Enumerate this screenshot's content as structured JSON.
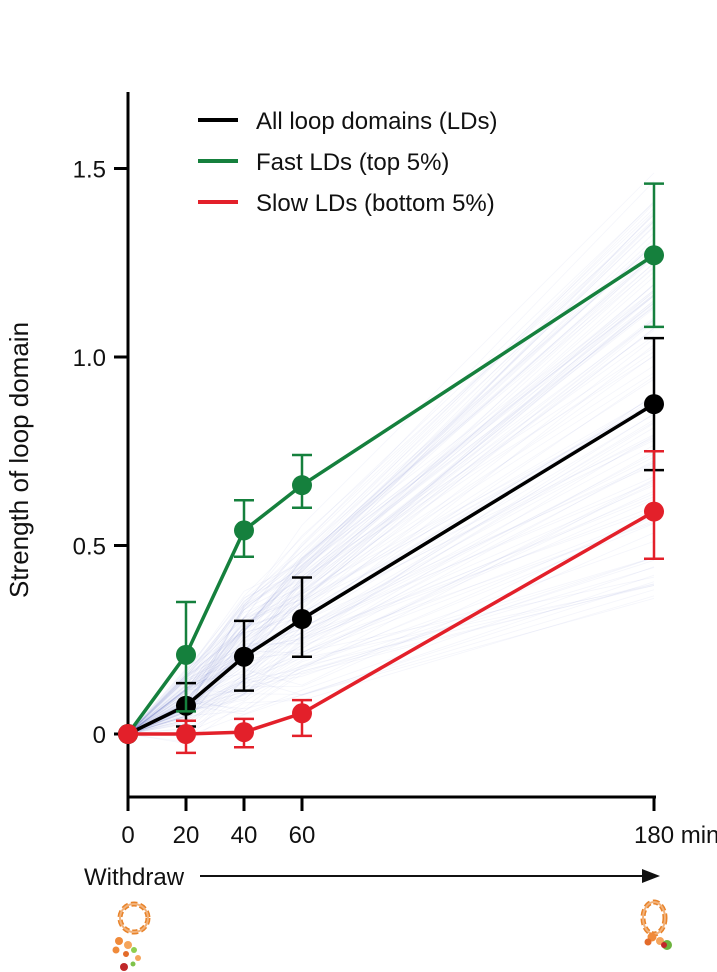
{
  "chart_data": {
    "type": "line",
    "title": "",
    "ylabel": "Strength of loop domain",
    "xlabel": "",
    "x": [
      0,
      20,
      40,
      60,
      180
    ],
    "x_tick_labels": [
      "0",
      "20",
      "40",
      "60",
      "180 min"
    ],
    "y_ticks": [
      0,
      0.5,
      1.0,
      1.5
    ],
    "y_tick_labels": [
      "0",
      "0.5",
      "1.0",
      "1.5"
    ],
    "ylim": [
      -0.17,
      1.7
    ],
    "legend_position": "top-left",
    "series": [
      {
        "name": "All loop domains (LDs)",
        "color": "#000000",
        "values": [
          0,
          0.075,
          0.205,
          0.305,
          0.875
        ],
        "err_low": [
          0,
          0.055,
          0.09,
          0.1,
          0.175
        ],
        "err_high": [
          0,
          0.06,
          0.095,
          0.11,
          0.175
        ]
      },
      {
        "name": "Fast LDs (top 5%)",
        "color": "#15803d",
        "values": [
          0,
          0.21,
          0.54,
          0.66,
          1.27
        ],
        "err_low": [
          0,
          0.15,
          0.07,
          0.06,
          0.19
        ],
        "err_high": [
          0,
          0.14,
          0.08,
          0.08,
          0.19
        ]
      },
      {
        "name": "Slow LDs (bottom 5%)",
        "color": "#e3202a",
        "values": [
          0,
          0.0,
          0.005,
          0.055,
          0.59
        ],
        "err_low": [
          0,
          0.05,
          0.04,
          0.06,
          0.125
        ],
        "err_high": [
          0,
          0.035,
          0.035,
          0.035,
          0.16
        ]
      }
    ],
    "annotation": "Withdraw",
    "background_traces": "faint individual loop-domain trajectories"
  },
  "colors": {
    "all": "#000000",
    "fast": "#15803d",
    "slow": "#e3202a",
    "traces": "#6a78c8"
  },
  "icons": {
    "start": "unfolded-chromatin-loop-icon",
    "end": "folded-chromatin-loop-icon"
  }
}
